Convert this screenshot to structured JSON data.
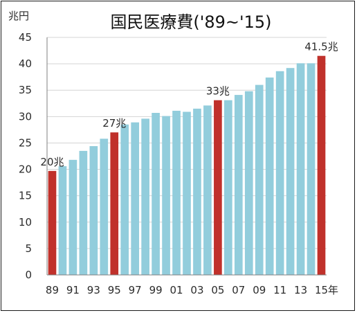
{
  "chart_data": {
    "type": "bar",
    "title": "国民医療費('89~'15)",
    "ylabel": "兆円",
    "xlabel": "年",
    "ylim": [
      0,
      45
    ],
    "yticks": [
      0,
      5,
      10,
      15,
      20,
      25,
      30,
      35,
      40,
      45
    ],
    "grid": true,
    "categories": [
      "89",
      "90",
      "91",
      "92",
      "93",
      "94",
      "95",
      "96",
      "97",
      "98",
      "99",
      "00",
      "01",
      "02",
      "03",
      "04",
      "05",
      "06",
      "07",
      "08",
      "09",
      "10",
      "11",
      "12",
      "13",
      "14",
      "15"
    ],
    "x_tick_labels": [
      "89",
      "",
      "91",
      "",
      "93",
      "",
      "95",
      "",
      "97",
      "",
      "99",
      "",
      "01",
      "",
      "03",
      "",
      "05",
      "",
      "07",
      "",
      "09",
      "",
      "11",
      "",
      "13",
      "",
      "15"
    ],
    "values": [
      19.7,
      20.6,
      21.8,
      23.5,
      24.4,
      25.8,
      27.0,
      28.5,
      28.9,
      29.6,
      30.7,
      30.1,
      31.1,
      30.9,
      31.5,
      32.1,
      33.1,
      33.1,
      34.1,
      34.8,
      36.0,
      37.4,
      38.6,
      39.2,
      40.1,
      40.1,
      41.5
    ],
    "highlight_indices": [
      0,
      6,
      16,
      26
    ],
    "data_labels": [
      {
        "index": 0,
        "text": "20兆"
      },
      {
        "index": 6,
        "text": "27兆"
      },
      {
        "index": 16,
        "text": "33兆"
      },
      {
        "index": 26,
        "text": "41.5兆"
      }
    ],
    "colors": {
      "bar": "#92cddc",
      "highlight": "#c0312b",
      "grid": "#d4d4d4",
      "axis": "#7f7f7f"
    }
  }
}
